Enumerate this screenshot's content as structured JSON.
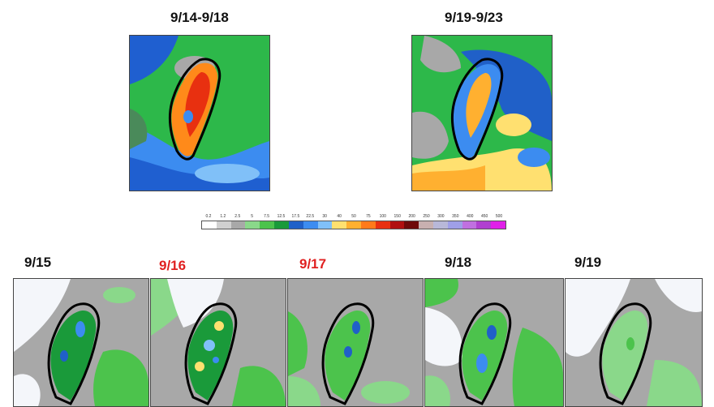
{
  "panels_top": [
    {
      "title": "9/14-9/18",
      "title_color": "#111111"
    },
    {
      "title": "9/19-9/23",
      "title_color": "#111111"
    }
  ],
  "panels_bottom": [
    {
      "title": "9/15",
      "title_color": "#111111"
    },
    {
      "title": "9/16",
      "title_color": "#e02020"
    },
    {
      "title": "9/17",
      "title_color": "#e02020"
    },
    {
      "title": "9/18",
      "title_color": "#111111"
    },
    {
      "title": "9/19",
      "title_color": "#111111"
    }
  ],
  "colorbar": {
    "labels": [
      "0.2",
      "1.2",
      "2.5",
      "5",
      "7.5",
      "12.5",
      "17.5",
      "22.5",
      "30",
      "40",
      "50",
      "75",
      "100",
      "150",
      "200",
      "250",
      "300",
      "350",
      "400",
      "450",
      "500"
    ],
    "colors": [
      "#ffffff",
      "#d0d0d0",
      "#a8a8a8",
      "#8ad88a",
      "#4cc34c",
      "#1a9a3a",
      "#2060c8",
      "#3c8cf0",
      "#80c0f8",
      "#ffe070",
      "#ffb030",
      "#ff7a1a",
      "#e83010",
      "#b01010",
      "#6e0a0a",
      "#c8b0b0",
      "#b8b8d8",
      "#9f9fe8",
      "#c070e0",
      "#b040d0",
      "#e020e8"
    ]
  },
  "colors": {
    "title_red": "#e02020",
    "land_outline": "#000000"
  }
}
